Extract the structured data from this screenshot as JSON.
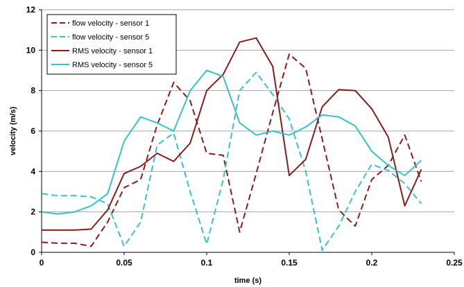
{
  "chart_data": {
    "type": "line",
    "xlabel": "time (s)",
    "ylabel": "velocity (m/s)",
    "xlim": [
      0,
      0.25
    ],
    "ylim": [
      0,
      12
    ],
    "xticks": [
      0,
      0.05,
      0.1,
      0.15,
      0.2,
      0.25
    ],
    "yticks": [
      0,
      2,
      4,
      6,
      8,
      10,
      12
    ],
    "x_tick_labels": [
      "0",
      "0.05",
      "0.1",
      "0.15",
      "0.2",
      "0.25"
    ],
    "y_tick_labels": [
      "0",
      "2",
      "4",
      "6",
      "8",
      "10",
      "12"
    ],
    "grid": "horizontal",
    "legend_position": "top-left",
    "series": [
      {
        "name": "flow velocity - sensor 1",
        "color": "#8b1a1a",
        "dash": "dashed",
        "x": [
          0,
          0.01,
          0.02,
          0.03,
          0.04,
          0.05,
          0.06,
          0.07,
          0.08,
          0.09,
          0.1,
          0.11,
          0.12,
          0.13,
          0.14,
          0.15,
          0.16,
          0.17,
          0.18,
          0.19,
          0.2,
          0.21,
          0.22,
          0.23
        ],
        "y": [
          0.5,
          0.45,
          0.45,
          0.3,
          1.5,
          3.2,
          3.6,
          6.3,
          8.4,
          7.5,
          4.9,
          4.8,
          1.0,
          3.9,
          6.9,
          9.8,
          9.1,
          5.6,
          2.1,
          1.3,
          3.6,
          4.3,
          5.8,
          3.5
        ]
      },
      {
        "name": "flow velocity - sensor 5",
        "color": "#33c4c4",
        "dash": "dashed",
        "x": [
          0,
          0.01,
          0.02,
          0.03,
          0.04,
          0.05,
          0.06,
          0.07,
          0.08,
          0.09,
          0.1,
          0.11,
          0.12,
          0.13,
          0.14,
          0.15,
          0.16,
          0.17,
          0.18,
          0.19,
          0.2,
          0.21,
          0.22,
          0.23
        ],
        "y": [
          2.9,
          2.8,
          2.8,
          2.75,
          2.4,
          0.3,
          1.5,
          5.3,
          5.9,
          3.0,
          0.4,
          3.6,
          8.0,
          8.9,
          7.8,
          6.6,
          4.0,
          0.1,
          1.3,
          3.0,
          4.35,
          4.05,
          3.4,
          2.4
        ]
      },
      {
        "name": "RMS velocity - sensor 1",
        "color": "#8b1a1a",
        "dash": "solid",
        "x": [
          0,
          0.01,
          0.02,
          0.03,
          0.04,
          0.05,
          0.06,
          0.07,
          0.08,
          0.09,
          0.1,
          0.11,
          0.12,
          0.13,
          0.14,
          0.15,
          0.16,
          0.17,
          0.18,
          0.19,
          0.2,
          0.21,
          0.22,
          0.23
        ],
        "y": [
          1.1,
          1.1,
          1.1,
          1.15,
          2.1,
          3.9,
          4.25,
          4.9,
          4.5,
          5.4,
          8.0,
          8.8,
          10.4,
          10.6,
          9.2,
          3.8,
          4.6,
          7.2,
          8.05,
          8.0,
          7.1,
          5.7,
          2.3,
          4.1
        ]
      },
      {
        "name": "RMS velocity - sensor 5",
        "color": "#33c4c4",
        "dash": "solid",
        "x": [
          0,
          0.01,
          0.02,
          0.03,
          0.04,
          0.05,
          0.06,
          0.07,
          0.08,
          0.09,
          0.1,
          0.11,
          0.12,
          0.13,
          0.14,
          0.15,
          0.16,
          0.17,
          0.18,
          0.19,
          0.2,
          0.21,
          0.22,
          0.23
        ],
        "y": [
          2.0,
          1.9,
          2.0,
          2.3,
          2.9,
          5.5,
          6.7,
          6.4,
          6.0,
          8.0,
          9.0,
          8.7,
          6.4,
          5.8,
          6.0,
          5.8,
          6.2,
          6.8,
          6.7,
          6.25,
          5.0,
          4.3,
          3.8,
          4.55
        ]
      }
    ]
  }
}
